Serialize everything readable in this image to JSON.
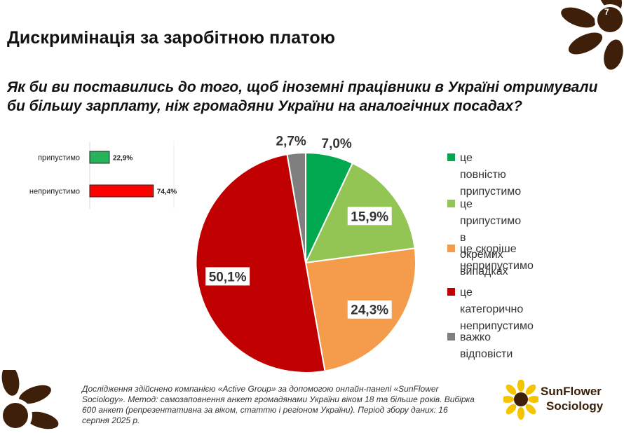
{
  "page_number": "7",
  "title": "Дискримінація за заробітною платою",
  "question": "Як би ви поставились до того, щоб іноземні працівники в Україні отримували би більшу зарплату, ніж громадяни України на аналогічних посадах?",
  "colors": {
    "brand_brown": "#3d1f0a",
    "fully_acceptable": "#00a84f",
    "acceptable_in_cases": "#92c553",
    "rather_unacceptable": "#f59b4c",
    "categorically_unacceptable": "#c00000",
    "hard_to_say": "#7f7f7f",
    "summary_acceptable": "#27b35a",
    "summary_unacceptable": "#ff0000"
  },
  "chart_data": [
    {
      "type": "bar",
      "orientation": "horizontal",
      "categories": [
        "припустимо",
        "неприпустимо"
      ],
      "values": [
        22.9,
        74.4
      ],
      "value_labels": [
        "22,9%",
        "74,4%"
      ],
      "colors": [
        "#27b35a",
        "#ff0000"
      ],
      "xlim": [
        0,
        100
      ]
    },
    {
      "type": "pie",
      "labels": [
        "це повністю припустимо",
        "це припустимо в окремих випадках",
        "це скоріше неприпустимо",
        "це категорично неприпустимо",
        "важко відповісти"
      ],
      "legend_labels": [
        "це повністю\nприпустимо",
        "це припустимо в\nокремих випадках",
        "це скоріше\nнеприпустимо",
        "це категорично\nнеприпустимо",
        "важко відповісти"
      ],
      "values": [
        7.0,
        15.9,
        24.3,
        50.1,
        2.7
      ],
      "value_labels": [
        "7,0%",
        "15,9%",
        "24,3%",
        "50,1%",
        "2,7%"
      ],
      "colors": [
        "#00a84f",
        "#92c553",
        "#f59b4c",
        "#c00000",
        "#7f7f7f"
      ],
      "legend_placement": "right"
    }
  ],
  "footnote": "Дослідження здійснено компанією «Active Group» за допомогою онлайн-панелі «SunFlower Sociology». Метод: самозаповнення анкет громадянами України віком 18 та більше років. Вибірка 600 анкет (репрезентативна за віком, статтю і регіоном України). Період збору даних: 16 серпня 2025 р.",
  "brand": {
    "line1": "SunFlower",
    "line2": "Sociology"
  }
}
